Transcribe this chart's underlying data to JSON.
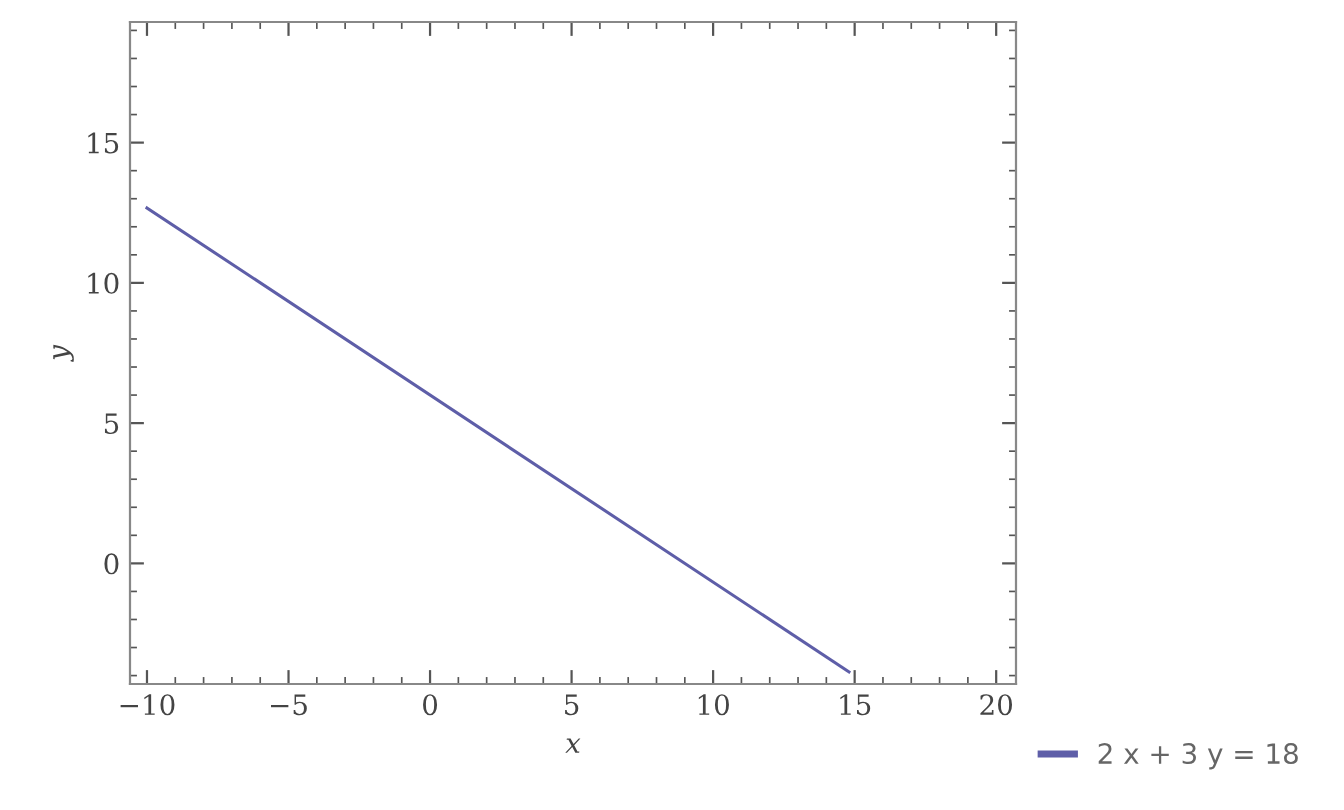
{
  "chart_data": {
    "type": "line",
    "xlabel": "x",
    "ylabel": "y",
    "x": [
      -10,
      14.8
    ],
    "series": [
      {
        "name": "2 x + 3 y = 18",
        "color": "#5e5ea8",
        "values": [
          12.67,
          -3.87
        ]
      }
    ],
    "xlim": [
      -10.6,
      20.7
    ],
    "ylim": [
      -4.3,
      19.3
    ],
    "xticks": [
      {
        "value": -10,
        "label": "−10"
      },
      {
        "value": -5,
        "label": "−5"
      },
      0,
      5,
      10,
      15,
      20
    ],
    "yticks": [
      0,
      5,
      10,
      15
    ],
    "grid": false,
    "legend": "bottom right",
    "marker": "none",
    "line_style": "solid"
  }
}
